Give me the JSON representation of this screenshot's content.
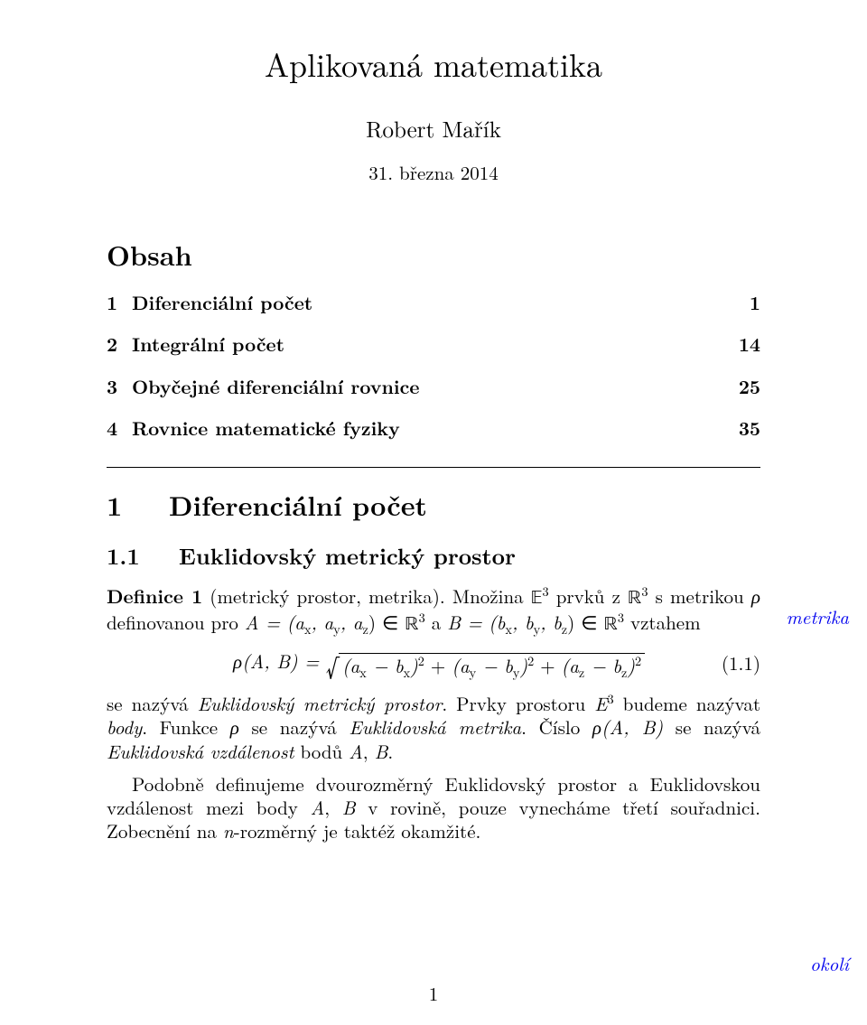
{
  "colors": {
    "text": "#000000",
    "bg": "#ffffff",
    "link": "#0000ee",
    "rule": "#000000"
  },
  "fonts": {
    "body_pt": 21,
    "title_pt": 36,
    "author_pt": 25,
    "date_pt": 21,
    "h1_pt": 30,
    "h2_pt": 25,
    "toc_heading_pt": 30
  },
  "title": "Aplikovaná matematika",
  "author": "Robert Mařík",
  "date": "31. března 2014",
  "toc_heading": "Obsah",
  "toc": [
    {
      "num": "1",
      "label": "Diferenciální počet",
      "page": "1"
    },
    {
      "num": "2",
      "label": "Integrální počet",
      "page": "14"
    },
    {
      "num": "3",
      "label": "Obyčejné diferenciální rovnice",
      "page": "25"
    },
    {
      "num": "4",
      "label": "Rovnice matematické fyziky",
      "page": "35"
    }
  ],
  "section": {
    "num": "1",
    "title": "Diferenciální počet"
  },
  "subsection": {
    "num": "1.1",
    "title": "Euklidovský metrický prostor"
  },
  "def": {
    "lead": "Definice 1",
    "paren": "(metrický prostor, metrika).",
    "sent_a": " Množina ",
    "E3": "𝔼",
    "sent_b": " prvků z ",
    "R": "ℝ",
    "sent_c": " s metrikou ",
    "rho": "ρ",
    "sent_d": " definovanou pro ",
    "A_eq": "A = (a",
    "sub_x": "x",
    "comma_a": ", a",
    "sub_y": "y",
    "sub_z": "z",
    "in": ") ∈ ",
    "and": " a ",
    "B_eq": "B = (b",
    "comma_b": ", b",
    "vztahem": " vztahem"
  },
  "eq": {
    "lhs": "ρ(A, B) = ",
    "t1a": "(a",
    "t1b": " − b",
    "t1c": ")",
    "plus": " + ",
    "num": "(1.1)"
  },
  "p2": {
    "a": "se nazývá ",
    "em1": "Euklidovský metrický prostor",
    "b": ". Prvky prostoru ",
    "E": "E",
    "c": " budeme nazývat ",
    "em2": "body",
    "d": ". Funkce ",
    "rho": "ρ",
    "e": " se nazývá ",
    "em3": "Euklidovská metrika",
    "f": ". Číslo ",
    "rhoAB": "ρ(A, B)",
    "g": " se nazývá ",
    "em4": "Euklidovská vzdálenost",
    "h": " bodů ",
    "A": "A",
    "comma": ", ",
    "B": "B",
    "period": "."
  },
  "p3": {
    "a": "Podobně definujeme dvourozměrný Euklidovský prostor a Euklidovskou vzdálenost mezi body ",
    "A": "A",
    "comma": ", ",
    "B": "B",
    "b": " v rovině, pouze vynecháme třetí souřadnici. Zobecnění na ",
    "n": "n",
    "c": "-rozměrný je taktéž okamžité."
  },
  "margin": {
    "metrika": "metrika",
    "okoli": "okolí"
  },
  "pagenum": "1"
}
